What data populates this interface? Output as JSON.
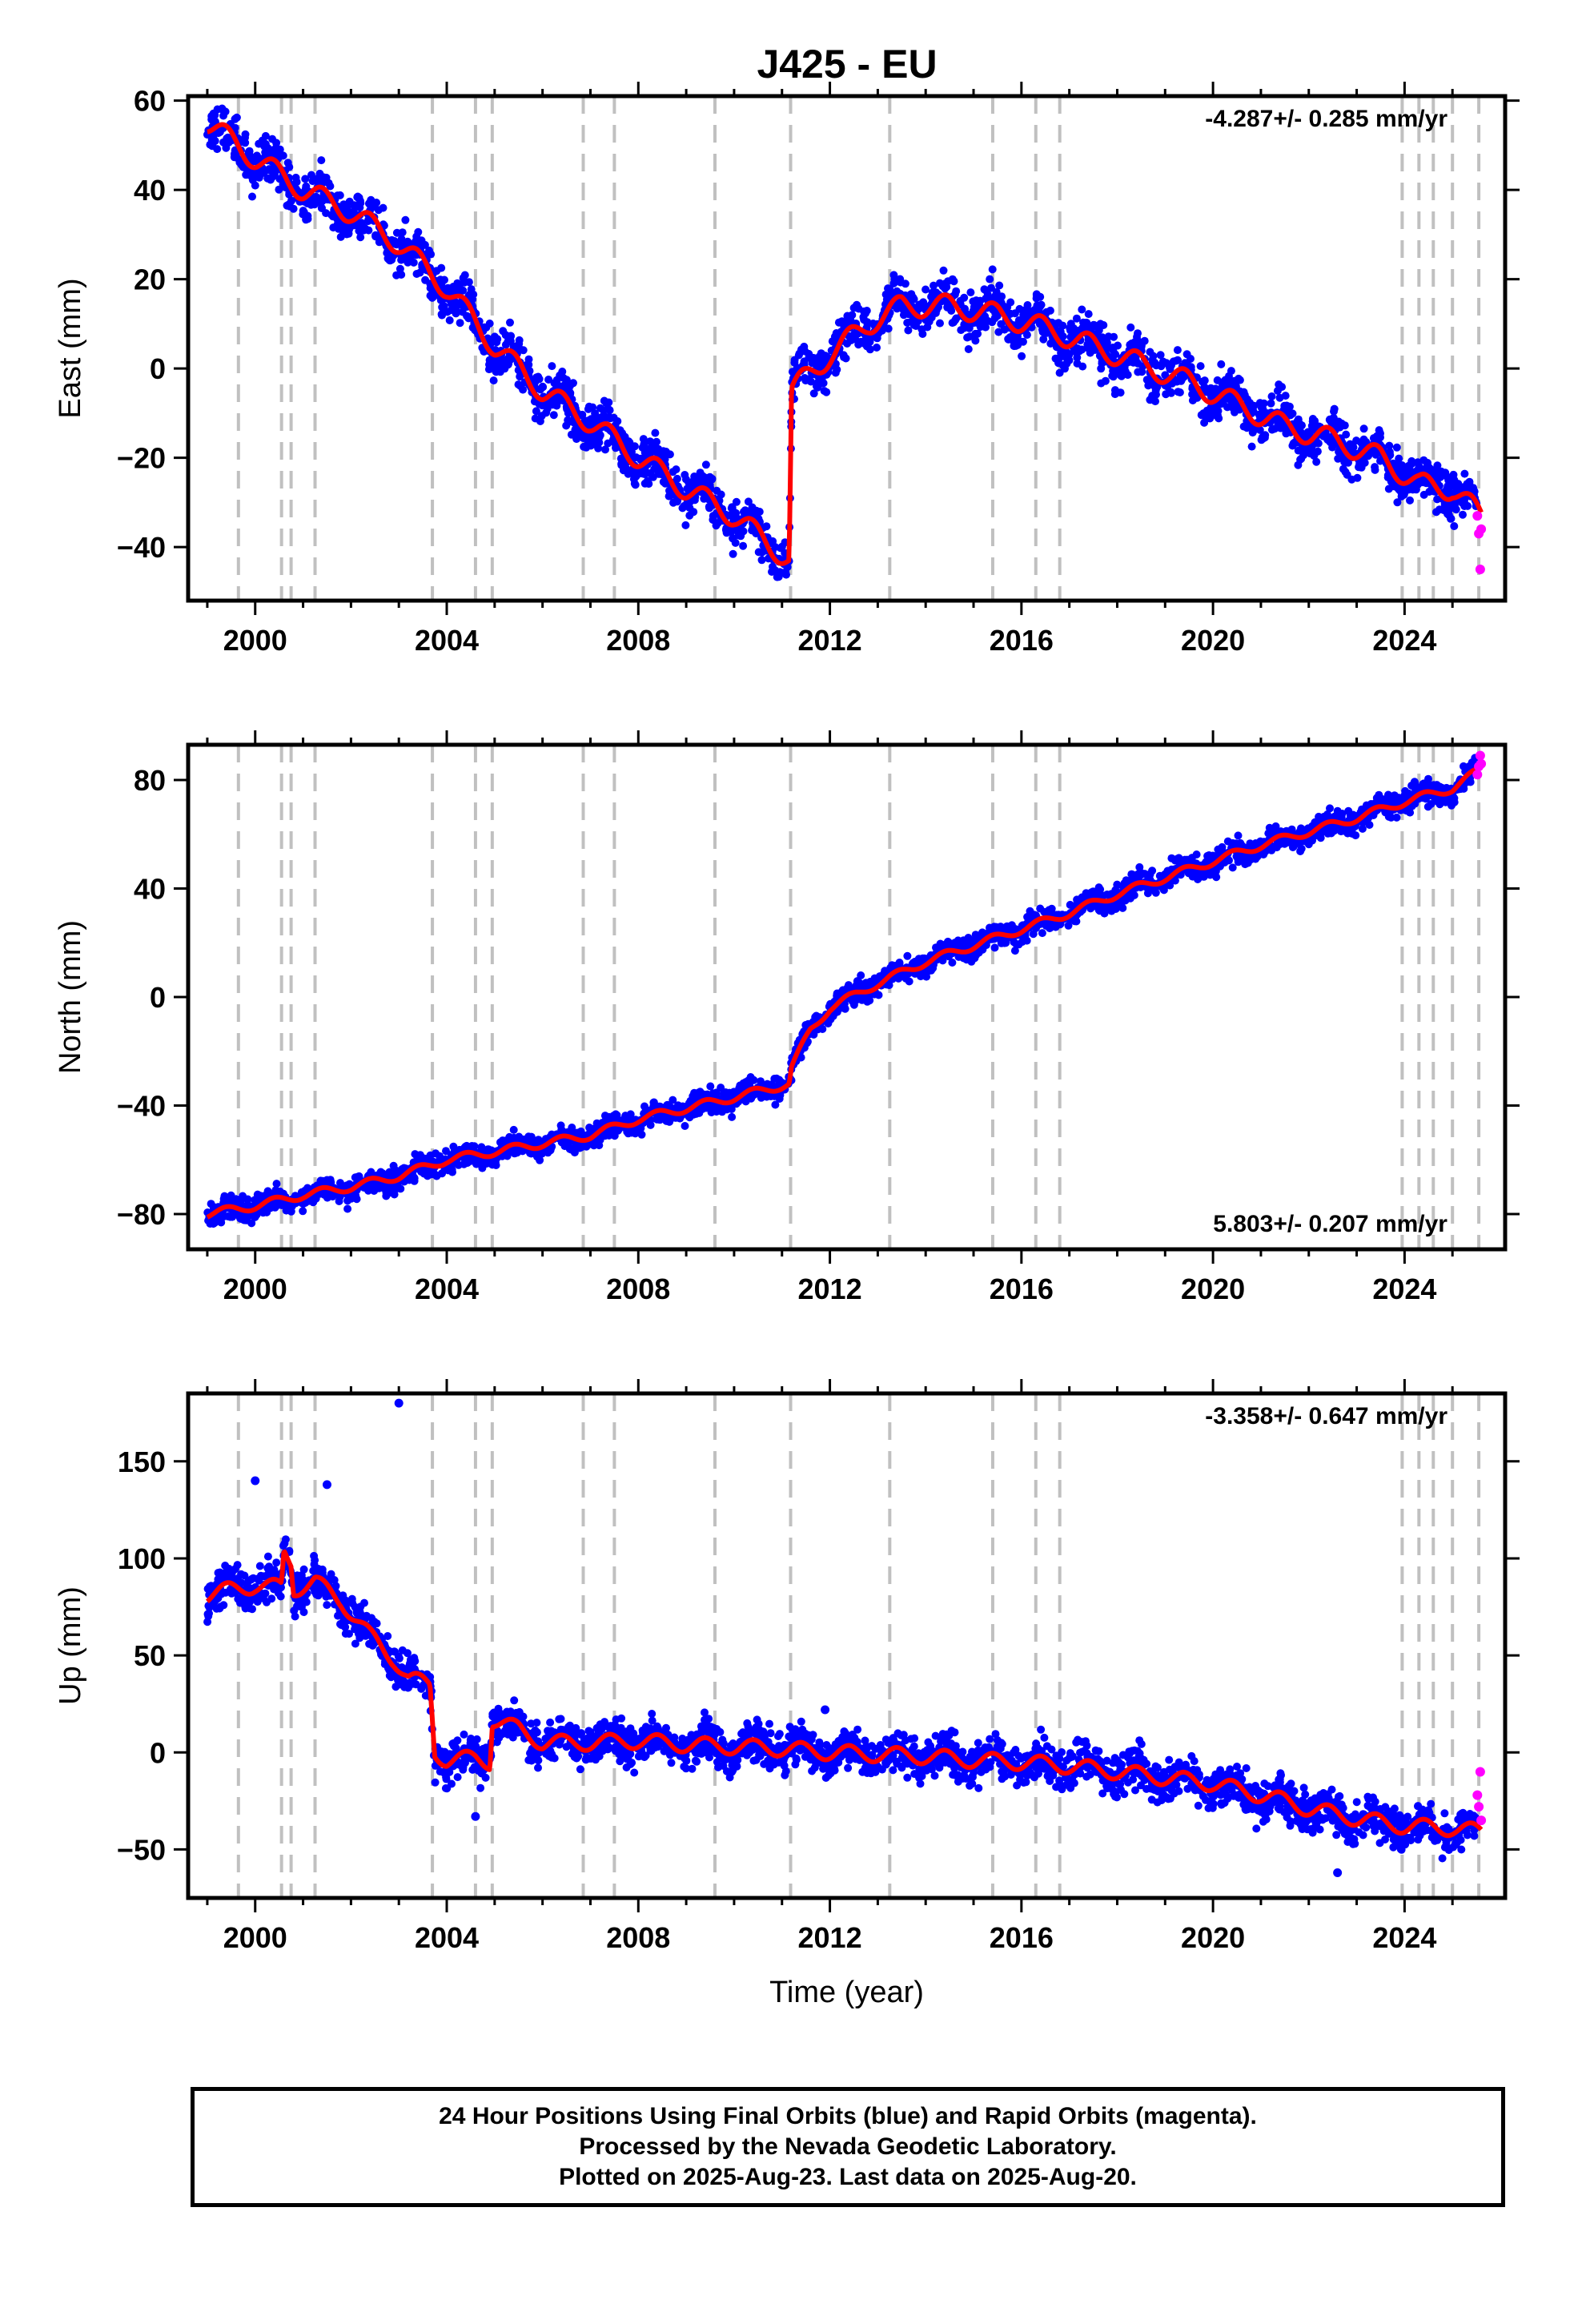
{
  "title": "J425 - EU",
  "caption": {
    "line1": "24 Hour Positions Using Final Orbits (blue) and Rapid Orbits (magenta).",
    "line2": "Processed by the Nevada Geodetic Laboratory.",
    "line3": "Plotted on 2025-Aug-23. Last data on 2025-Aug-20."
  },
  "colors": {
    "final_orbits": "#0000ff",
    "rapid_orbits": "#ff00ff",
    "model": "#ff0000",
    "event_lines": "#c0c0c0"
  },
  "chart_data": [
    {
      "type": "scatter",
      "component": "East",
      "ylabel": "East (mm)",
      "xlabel": "",
      "xlim": [
        1998.6,
        2026.1
      ],
      "ylim": [
        -52,
        61
      ],
      "xticks": [
        2000,
        2004,
        2008,
        2012,
        2016,
        2020,
        2024
      ],
      "yticks": [
        -40,
        -20,
        0,
        20,
        40,
        60
      ],
      "ytick_labels": [
        "−40",
        "−20",
        "0",
        "20",
        "40",
        "60"
      ],
      "rate": "-4.287+/- 0.285 mm/yr",
      "rate_position": "top-right",
      "grid": false,
      "event_lines": [
        1999.65,
        2000.55,
        2000.75,
        2001.25,
        2003.7,
        2004.6,
        2004.95,
        2006.85,
        2007.5,
        2009.6,
        2011.18,
        2013.25,
        2015.4,
        2016.3,
        2016.8,
        2023.95,
        2024.3,
        2024.6,
        2025.0,
        2025.55
      ],
      "model": [
        [
          1999.0,
          55
        ],
        [
          2000.0,
          47
        ],
        [
          2001.0,
          40
        ],
        [
          2002.0,
          35
        ],
        [
          2003.0,
          28
        ],
        [
          2004.0,
          18
        ],
        [
          2005.0,
          5
        ],
        [
          2006.0,
          -5
        ],
        [
          2007.0,
          -12
        ],
        [
          2008.0,
          -20
        ],
        [
          2009.0,
          -27
        ],
        [
          2010.0,
          -33
        ],
        [
          2011.15,
          -43
        ],
        [
          2011.2,
          -5
        ],
        [
          2012.0,
          3
        ],
        [
          2012.8,
          10
        ],
        [
          2013.5,
          14
        ],
        [
          2014.5,
          14
        ],
        [
          2015.5,
          12
        ],
        [
          2016.5,
          9
        ],
        [
          2017.5,
          5
        ],
        [
          2018.5,
          1
        ],
        [
          2019.5,
          -3
        ],
        [
          2020.5,
          -8
        ],
        [
          2021.5,
          -13
        ],
        [
          2022.5,
          -16
        ],
        [
          2023.5,
          -20
        ],
        [
          2024.3,
          -26
        ],
        [
          2025.0,
          -27
        ],
        [
          2025.6,
          -33
        ]
      ],
      "model_seasonal_mm": 2.5,
      "final_scatter_mm": 3.5,
      "rapid": [
        [
          2025.52,
          -33
        ],
        [
          2025.55,
          -37
        ],
        [
          2025.58,
          -45
        ],
        [
          2025.6,
          -36
        ]
      ]
    },
    {
      "type": "scatter",
      "component": "North",
      "ylabel": "North (mm)",
      "xlabel": "",
      "xlim": [
        1998.6,
        2026.1
      ],
      "ylim": [
        -93,
        93
      ],
      "xticks": [
        2000,
        2004,
        2008,
        2012,
        2016,
        2020,
        2024
      ],
      "yticks": [
        -80,
        -40,
        0,
        40,
        80
      ],
      "ytick_labels": [
        "−80",
        "−40",
        "0",
        "40",
        "80"
      ],
      "rate": "5.803+/- 0.207 mm/yr",
      "rate_position": "bottom-right",
      "grid": false,
      "event_lines": [
        1999.65,
        2000.55,
        2000.75,
        2001.25,
        2003.7,
        2004.6,
        2004.95,
        2006.85,
        2007.5,
        2009.6,
        2011.18,
        2013.25,
        2015.4,
        2016.3,
        2016.8,
        2023.95,
        2024.3,
        2024.6,
        2025.0,
        2025.55
      ],
      "model": [
        [
          1999.0,
          -80
        ],
        [
          2000.0,
          -77
        ],
        [
          2001.0,
          -73
        ],
        [
          2002.0,
          -70
        ],
        [
          2003.0,
          -66
        ],
        [
          2004.0,
          -60
        ],
        [
          2005.0,
          -57
        ],
        [
          2006.0,
          -54
        ],
        [
          2007.0,
          -51
        ],
        [
          2008.0,
          -45
        ],
        [
          2009.0,
          -41
        ],
        [
          2010.0,
          -37
        ],
        [
          2011.15,
          -32
        ],
        [
          2011.2,
          -26
        ],
        [
          2011.6,
          -12
        ],
        [
          2012.0,
          -4
        ],
        [
          2013.0,
          5
        ],
        [
          2014.0,
          13
        ],
        [
          2015.0,
          19
        ],
        [
          2016.0,
          25
        ],
        [
          2017.0,
          31
        ],
        [
          2018.0,
          38
        ],
        [
          2019.0,
          44
        ],
        [
          2020.0,
          50
        ],
        [
          2021.0,
          56
        ],
        [
          2022.0,
          61
        ],
        [
          2023.0,
          66
        ],
        [
          2024.0,
          72
        ],
        [
          2025.0,
          77
        ],
        [
          2025.6,
          84
        ]
      ],
      "model_seasonal_mm": 1.5,
      "final_scatter_mm": 3,
      "rapid": [
        [
          2025.52,
          82
        ],
        [
          2025.55,
          85
        ],
        [
          2025.58,
          89
        ],
        [
          2025.6,
          86
        ]
      ]
    },
    {
      "type": "scatter",
      "component": "Up",
      "ylabel": "Up (mm)",
      "xlabel": "Time (year)",
      "xlim": [
        1998.6,
        2026.1
      ],
      "ylim": [
        -75,
        185
      ],
      "xticks": [
        2000,
        2004,
        2008,
        2012,
        2016,
        2020,
        2024
      ],
      "yticks": [
        -50,
        0,
        50,
        100,
        150
      ],
      "ytick_labels": [
        "−50",
        "0",
        "50",
        "100",
        "150"
      ],
      "rate": "-3.358+/- 0.647 mm/yr",
      "rate_position": "top-right",
      "grid": false,
      "event_lines": [
        1999.65,
        2000.55,
        2000.75,
        2001.25,
        2003.7,
        2004.6,
        2004.95,
        2006.85,
        2007.5,
        2009.6,
        2011.18,
        2013.25,
        2015.4,
        2016.3,
        2016.8,
        2023.95,
        2024.3,
        2024.6,
        2025.0,
        2025.55
      ],
      "model": [
        [
          1999.0,
          81
        ],
        [
          1999.5,
          84
        ],
        [
          2000.0,
          86
        ],
        [
          2000.55,
          85
        ],
        [
          2000.6,
          103
        ],
        [
          2000.75,
          98
        ],
        [
          2000.8,
          84
        ],
        [
          2001.25,
          88
        ],
        [
          2001.8,
          78
        ],
        [
          2002.4,
          60
        ],
        [
          2002.9,
          48
        ],
        [
          2003.2,
          38
        ],
        [
          2003.65,
          35
        ],
        [
          2003.75,
          0
        ],
        [
          2004.0,
          -4
        ],
        [
          2004.6,
          -3
        ],
        [
          2004.9,
          -5
        ],
        [
          2004.95,
          17
        ],
        [
          2005.5,
          12
        ],
        [
          2006.0,
          5
        ],
        [
          2007.0,
          5
        ],
        [
          2008.0,
          6
        ],
        [
          2009.0,
          4
        ],
        [
          2010.0,
          3
        ],
        [
          2011.0,
          2
        ],
        [
          2012.0,
          0
        ],
        [
          2013.0,
          -1
        ],
        [
          2014.0,
          -2
        ],
        [
          2015.0,
          -4
        ],
        [
          2016.0,
          -5
        ],
        [
          2017.0,
          -7
        ],
        [
          2018.0,
          -10
        ],
        [
          2019.0,
          -13
        ],
        [
          2020.0,
          -16
        ],
        [
          2021.0,
          -22
        ],
        [
          2021.5,
          -25
        ],
        [
          2022.0,
          -29
        ],
        [
          2023.0,
          -34
        ],
        [
          2024.0,
          -38
        ],
        [
          2025.0,
          -39
        ],
        [
          2025.6,
          -41
        ]
      ],
      "model_seasonal_mm": 4,
      "final_scatter_mm": 7,
      "outliers": [
        [
          2003.0,
          180
        ],
        [
          2000.0,
          140
        ],
        [
          2001.5,
          138
        ],
        [
          2004.6,
          -33
        ],
        [
          2022.6,
          -62
        ],
        [
          2011.9,
          22
        ]
      ],
      "rapid": [
        [
          2025.52,
          -22
        ],
        [
          2025.55,
          -28
        ],
        [
          2025.58,
          -10
        ],
        [
          2025.6,
          -35
        ]
      ]
    }
  ]
}
